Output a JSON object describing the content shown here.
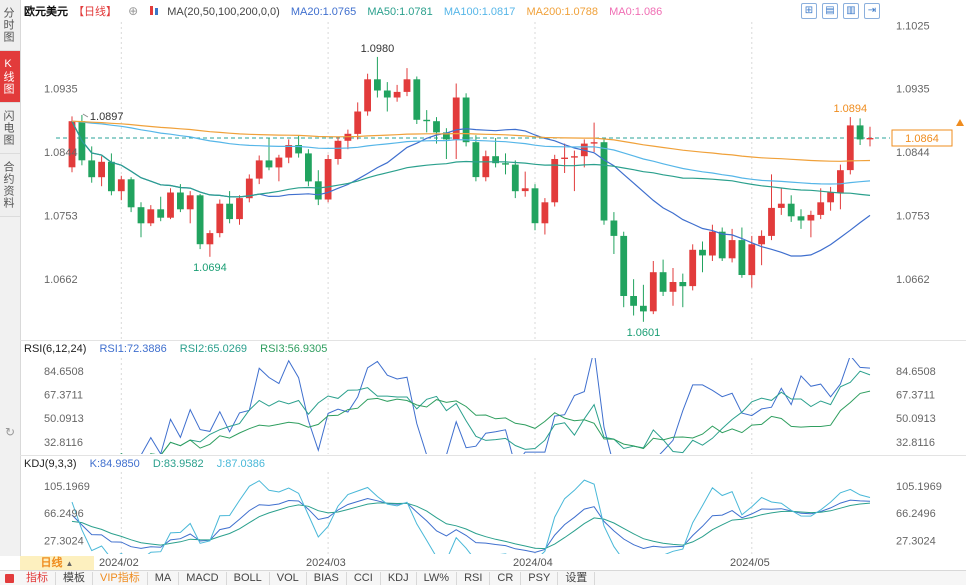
{
  "sidebar": {
    "tabs": [
      "分时图",
      "K线图",
      "闪电图",
      "合约资料"
    ],
    "active_index": 1,
    "refresh_icon": "↻"
  },
  "header": {
    "symbol": "欧元美元",
    "period_tag": "【日线】",
    "zoom_icon": "⊕",
    "ma_title": "MA(20,50,100,200,0,0)",
    "ma20": "MA20:1.0765",
    "ma50": "MA50:1.0781",
    "ma100": "MA100:1.0817",
    "ma200": "MA200:1.0788",
    "ma0": "MA0:1.086",
    "window_icons": [
      "⊞",
      "▤",
      "▥",
      "⇥"
    ]
  },
  "rsi": {
    "title": "RSI(6,12,24)",
    "rsi1": "RSI1:72.3886",
    "rsi2": "RSI2:65.0269",
    "rsi3": "RSI3:56.9305",
    "axis_labels": [
      84.6508,
      67.3711,
      50.0913,
      32.8116
    ]
  },
  "kdj": {
    "title": "KDJ(9,3,3)",
    "k": "K:84.9850",
    "d": "D:83.9582",
    "j": "J:87.0386",
    "axis_labels": [
      105.1969,
      66.2496,
      27.3024
    ]
  },
  "xaxis": {
    "period_label": "日线",
    "period_arrow": "▲",
    "ticks": [
      {
        "i": 5,
        "label": "2024/02"
      },
      {
        "i": 26,
        "label": "2024/03"
      },
      {
        "i": 47,
        "label": "2024/04"
      },
      {
        "i": 69,
        "label": "2024/05"
      }
    ]
  },
  "footer": {
    "tabs": [
      {
        "label": "指标",
        "color": "#e23b3b"
      },
      {
        "label": "模板"
      },
      {
        "label": "VIP指标",
        "color": "#ef8c1e"
      },
      {
        "label": "MA"
      },
      {
        "label": "MACD"
      },
      {
        "label": "BOLL"
      },
      {
        "label": "VOL"
      },
      {
        "label": "BIAS"
      },
      {
        "label": "CCI"
      },
      {
        "label": "KDJ"
      },
      {
        "label": "LW%"
      },
      {
        "label": "RSI"
      },
      {
        "label": "CR"
      },
      {
        "label": "PSY"
      },
      {
        "label": "设置"
      }
    ]
  },
  "chart_data": {
    "type": "candlestick",
    "title": "欧元美元 日线",
    "current_price": 1.0864,
    "price_axis_left": [
      1.0935,
      1.0844,
      1.0753,
      1.0662
    ],
    "price_axis_right": [
      1.1025,
      1.0935,
      1.0844,
      1.0753,
      1.0662
    ],
    "ranges": {
      "main": [
        1.0575,
        1.103
      ],
      "rsi": [
        24,
        94
      ],
      "kdj": [
        8,
        125
      ]
    },
    "ma_periods": [
      20,
      50,
      100,
      200
    ],
    "indicator_headers": {
      "rsi_values": [
        72.3886,
        65.0269,
        56.9305
      ],
      "kdj_values": [
        84.985,
        83.9582,
        87.0386
      ]
    },
    "colors": {
      "up": "#e23b3b",
      "down": "#21a35f",
      "ma20": "#3f6fce",
      "ma50": "#2ba08d",
      "ma100": "#56b6e8",
      "ma200": "#f0a13a",
      "grid": "#d9d9d9",
      "price_line": "#2aa39a",
      "price_box": "#ef8c1e",
      "axis_text": "#666",
      "rsi1": "#3f6fce",
      "rsi2": "#2ba08d",
      "rsi3": "#2f9e5f",
      "k": "#3f6fce",
      "d": "#2ba08d",
      "j": "#49b8d8"
    },
    "annotations": [
      {
        "text": "1.0897",
        "i": 1,
        "price": 1.0897,
        "pos": "right",
        "color": "#333"
      },
      {
        "text": "1.0980",
        "i": 31,
        "price": 1.098,
        "pos": "above",
        "color": "#333"
      },
      {
        "text": "1.0694",
        "i": 14,
        "price": 1.0694,
        "pos": "below",
        "color": "#1a9e74"
      },
      {
        "text": "1.0601",
        "i": 58,
        "price": 1.0601,
        "pos": "below",
        "color": "#1a9e74"
      },
      {
        "text": "1.0894",
        "i": 79,
        "price": 1.0894,
        "pos": "above",
        "color": "#ef8c1e"
      }
    ],
    "candles": [
      [
        "01/25",
        1.0822,
        1.0895,
        1.0815,
        1.0888
      ],
      [
        "01/26",
        1.0888,
        1.0897,
        1.0825,
        1.0832
      ],
      [
        "01/29",
        1.0832,
        1.0852,
        1.08,
        1.0808
      ],
      [
        "01/30",
        1.0808,
        1.0838,
        1.0795,
        1.083
      ],
      [
        "01/31",
        1.083,
        1.0842,
        1.0782,
        1.0788
      ],
      [
        "02/01",
        1.0788,
        1.081,
        1.0775,
        1.0805
      ],
      [
        "02/02",
        1.0805,
        1.0808,
        1.0758,
        1.0765
      ],
      [
        "02/05",
        1.0765,
        1.0772,
        1.0722,
        1.0742
      ],
      [
        "02/06",
        1.0742,
        1.0768,
        1.0738,
        1.0762
      ],
      [
        "02/07",
        1.0762,
        1.078,
        1.0745,
        1.075
      ],
      [
        "02/08",
        1.075,
        1.0792,
        1.0748,
        1.0786
      ],
      [
        "02/09",
        1.0786,
        1.0798,
        1.0758,
        1.0762
      ],
      [
        "02/12",
        1.0762,
        1.0788,
        1.0742,
        1.0782
      ],
      [
        "02/13",
        1.0782,
        1.0784,
        1.0705,
        1.0712
      ],
      [
        "02/14",
        1.0712,
        1.0732,
        1.0694,
        1.0728
      ],
      [
        "02/15",
        1.0728,
        1.0776,
        1.0722,
        1.077
      ],
      [
        "02/16",
        1.077,
        1.0788,
        1.0742,
        1.0748
      ],
      [
        "02/19",
        1.0748,
        1.0782,
        1.074,
        1.0778
      ],
      [
        "02/20",
        1.0778,
        1.0812,
        1.0772,
        1.0806
      ],
      [
        "02/21",
        1.0806,
        1.0839,
        1.0798,
        1.0832
      ],
      [
        "02/22",
        1.0832,
        1.0864,
        1.0818,
        1.0822
      ],
      [
        "02/23",
        1.0822,
        1.084,
        1.0802,
        1.0836
      ],
      [
        "02/26",
        1.0836,
        1.0862,
        1.0828,
        1.0854
      ],
      [
        "02/27",
        1.0854,
        1.0868,
        1.0836,
        1.0842
      ],
      [
        "02/28",
        1.0842,
        1.0848,
        1.0795,
        1.0802
      ],
      [
        "02/29",
        1.0802,
        1.0818,
        1.0768,
        1.0776
      ],
      [
        "03/01",
        1.0776,
        1.084,
        1.0772,
        1.0834
      ],
      [
        "03/04",
        1.0834,
        1.0866,
        1.0826,
        1.086
      ],
      [
        "03/05",
        1.086,
        1.0876,
        1.0848,
        1.087
      ],
      [
        "03/06",
        1.087,
        1.0915,
        1.0862,
        1.0902
      ],
      [
        "03/07",
        1.0902,
        1.0956,
        1.0896,
        1.0948
      ],
      [
        "03/08",
        1.0948,
        1.098,
        1.0922,
        1.0932
      ],
      [
        "03/11",
        1.0932,
        1.0944,
        1.0902,
        1.0922
      ],
      [
        "03/12",
        1.0922,
        1.094,
        1.0916,
        1.093
      ],
      [
        "03/13",
        1.093,
        1.0964,
        1.0924,
        1.0948
      ],
      [
        "03/14",
        1.0948,
        1.0952,
        1.0884,
        1.089
      ],
      [
        "03/15",
        1.089,
        1.0904,
        1.0872,
        1.0888
      ],
      [
        "03/18",
        1.0888,
        1.0894,
        1.0856,
        1.0872
      ],
      [
        "03/19",
        1.0872,
        1.0878,
        1.0834,
        1.0862
      ],
      [
        "03/20",
        1.0862,
        1.0942,
        1.0834,
        1.0922
      ],
      [
        "03/21",
        1.0922,
        1.0928,
        1.0852,
        1.0858
      ],
      [
        "03/22",
        1.0858,
        1.0868,
        1.0802,
        1.0808
      ],
      [
        "03/25",
        1.0808,
        1.0846,
        1.0802,
        1.0838
      ],
      [
        "03/26",
        1.0838,
        1.0864,
        1.0822,
        1.0828
      ],
      [
        "03/27",
        1.0828,
        1.0842,
        1.0812,
        1.0826
      ],
      [
        "03/28",
        1.0826,
        1.0832,
        1.0778,
        1.0788
      ],
      [
        "03/29",
        1.0788,
        1.0816,
        1.078,
        1.0792
      ],
      [
        "04/01",
        1.0792,
        1.0798,
        1.0732,
        1.0742
      ],
      [
        "04/02",
        1.0742,
        1.0778,
        1.0726,
        1.0772
      ],
      [
        "04/03",
        1.0772,
        1.084,
        1.0766,
        1.0834
      ],
      [
        "04/04",
        1.0834,
        1.0856,
        1.0814,
        1.0836
      ],
      [
        "04/05",
        1.0836,
        1.0846,
        1.0788,
        1.0838
      ],
      [
        "04/08",
        1.0838,
        1.0862,
        1.0822,
        1.0856
      ],
      [
        "04/09",
        1.0856,
        1.0886,
        1.0844,
        1.0858
      ],
      [
        "04/10",
        1.0858,
        1.0862,
        1.074,
        1.0746
      ],
      [
        "04/11",
        1.0746,
        1.0758,
        1.0698,
        1.0724
      ],
      [
        "04/12",
        1.0724,
        1.073,
        1.0622,
        1.0638
      ],
      [
        "04/15",
        1.0638,
        1.0662,
        1.061,
        1.0624
      ],
      [
        "04/16",
        1.0624,
        1.0654,
        1.0601,
        1.0616
      ],
      [
        "04/17",
        1.0616,
        1.0688,
        1.0612,
        1.0672
      ],
      [
        "04/18",
        1.0672,
        1.069,
        1.0638,
        1.0644
      ],
      [
        "04/19",
        1.0644,
        1.0678,
        1.0624,
        1.0658
      ],
      [
        "04/22",
        1.0658,
        1.067,
        1.0622,
        1.0652
      ],
      [
        "04/23",
        1.0652,
        1.0712,
        1.0646,
        1.0704
      ],
      [
        "04/24",
        1.0704,
        1.0716,
        1.0672,
        1.0696
      ],
      [
        "04/25",
        1.0696,
        1.074,
        1.0688,
        1.073
      ],
      [
        "04/26",
        1.073,
        1.0736,
        1.0688,
        1.0692
      ],
      [
        "04/29",
        1.0692,
        1.0734,
        1.0686,
        1.0718
      ],
      [
        "04/30",
        1.0718,
        1.0736,
        1.0664,
        1.0668
      ],
      [
        "05/01",
        1.0668,
        1.0724,
        1.065,
        1.0712
      ],
      [
        "05/02",
        1.0712,
        1.0732,
        1.0682,
        1.0724
      ],
      [
        "05/03",
        1.0724,
        1.0812,
        1.0718,
        1.0764
      ],
      [
        "05/06",
        1.0764,
        1.0792,
        1.0754,
        1.077
      ],
      [
        "05/07",
        1.077,
        1.0782,
        1.0744,
        1.0752
      ],
      [
        "05/08",
        1.0752,
        1.0762,
        1.0734,
        1.0746
      ],
      [
        "05/09",
        1.0746,
        1.076,
        1.0722,
        1.0754
      ],
      [
        "05/10",
        1.0754,
        1.0792,
        1.0748,
        1.0772
      ],
      [
        "05/13",
        1.0772,
        1.0794,
        1.076,
        1.0786
      ],
      [
        "05/14",
        1.0786,
        1.0826,
        1.0762,
        1.0818
      ],
      [
        "05/15",
        1.0818,
        1.0894,
        1.0812,
        1.0882
      ],
      [
        "05/16",
        1.0882,
        1.0892,
        1.0854,
        1.0862
      ],
      [
        "05/17",
        1.0862,
        1.088,
        1.0852,
        1.0864
      ]
    ]
  }
}
